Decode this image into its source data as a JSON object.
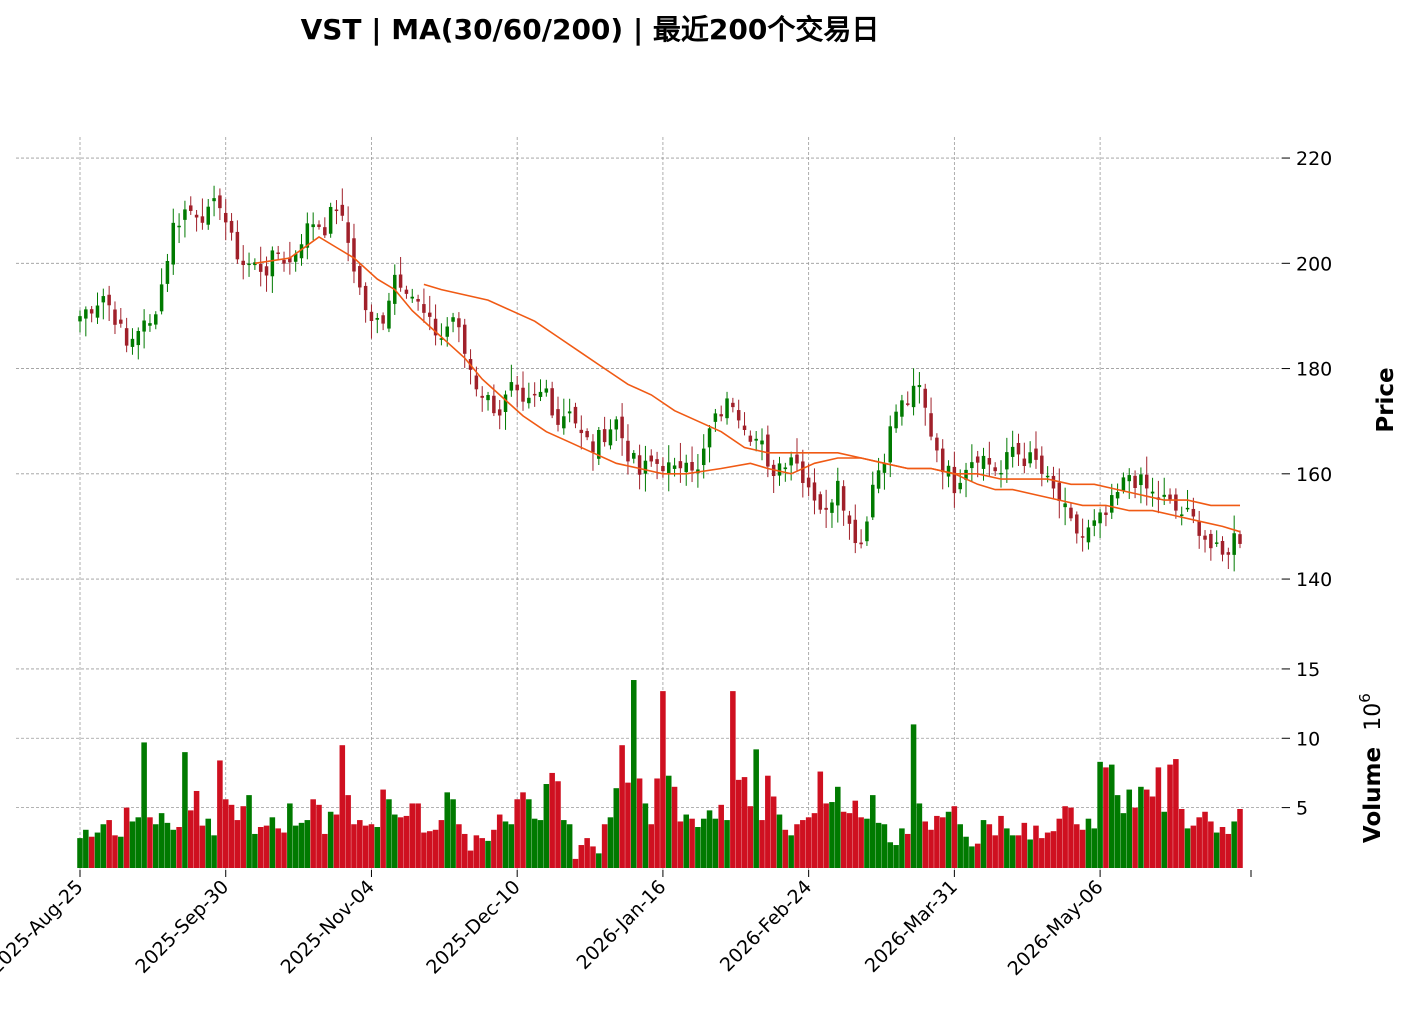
{
  "title": "VST  |  MA(30/60/200)  |  最近200个交易日",
  "chart_data": [
    {
      "type": "candlestick",
      "ylabel": "Price",
      "ylim": [
        125,
        224
      ],
      "yticks": [
        140,
        160,
        180,
        200,
        220
      ],
      "xticks": [
        "2025-Aug-25",
        "2025-Sep-30",
        "2025-Nov-04",
        "2025-Dec-10",
        "2026-Jan-16",
        "2026-Feb-24",
        "2026-Mar-31",
        "2026-May-06"
      ],
      "xtick_index": [
        0,
        25,
        50,
        75,
        100,
        125,
        150,
        175
      ],
      "n_bars": 200,
      "grid": true,
      "colors": {
        "up": "#007a00",
        "down": "#a0202a",
        "ma": "#f05a14"
      },
      "anchors": [
        [
          0,
          190
        ],
        [
          4,
          194
        ],
        [
          6,
          190
        ],
        [
          8,
          184
        ],
        [
          10,
          188
        ],
        [
          12,
          188
        ],
        [
          14,
          196
        ],
        [
          16,
          207
        ],
        [
          18,
          210
        ],
        [
          20,
          210
        ],
        [
          22,
          209
        ],
        [
          24,
          212
        ],
        [
          26,
          204
        ],
        [
          28,
          200
        ],
        [
          32,
          199
        ],
        [
          34,
          202
        ],
        [
          36,
          200
        ],
        [
          38,
          205
        ],
        [
          40,
          208
        ],
        [
          42,
          207
        ],
        [
          44,
          211
        ],
        [
          46,
          204
        ],
        [
          48,
          195
        ],
        [
          50,
          188
        ],
        [
          52,
          190
        ],
        [
          54,
          198
        ],
        [
          56,
          196
        ],
        [
          58,
          192
        ],
        [
          60,
          188
        ],
        [
          62,
          186
        ],
        [
          64,
          190
        ],
        [
          66,
          183
        ],
        [
          68,
          177
        ],
        [
          70,
          174
        ],
        [
          72,
          172
        ],
        [
          74,
          176
        ],
        [
          76,
          172
        ],
        [
          78,
          174
        ],
        [
          80,
          176
        ],
        [
          82,
          170
        ],
        [
          84,
          173
        ],
        [
          86,
          167
        ],
        [
          88,
          165
        ],
        [
          90,
          168
        ],
        [
          92,
          170
        ],
        [
          94,
          164
        ],
        [
          96,
          160
        ],
        [
          98,
          162
        ],
        [
          100,
          162
        ],
        [
          102,
          160
        ],
        [
          104,
          164
        ],
        [
          106,
          160
        ],
        [
          108,
          168
        ],
        [
          110,
          172
        ],
        [
          112,
          174
        ],
        [
          114,
          170
        ],
        [
          115,
          168
        ],
        [
          117,
          165
        ],
        [
          118,
          160
        ],
        [
          120,
          162
        ],
        [
          122,
          164
        ],
        [
          124,
          160
        ],
        [
          126,
          156
        ],
        [
          128,
          152
        ],
        [
          130,
          160
        ],
        [
          132,
          150
        ],
        [
          134,
          147
        ],
        [
          136,
          158
        ],
        [
          138,
          164
        ],
        [
          140,
          172
        ],
        [
          142,
          174
        ],
        [
          144,
          176
        ],
        [
          146,
          168
        ],
        [
          148,
          162
        ],
        [
          150,
          158
        ],
        [
          152,
          162
        ],
        [
          154,
          164
        ],
        [
          156,
          162
        ],
        [
          158,
          160
        ],
        [
          160,
          165
        ],
        [
          162,
          163
        ],
        [
          164,
          162
        ],
        [
          166,
          158
        ],
        [
          168,
          155
        ],
        [
          170,
          150
        ],
        [
          172,
          148
        ],
        [
          174,
          150
        ],
        [
          176,
          152
        ],
        [
          178,
          156
        ],
        [
          180,
          160
        ],
        [
          182,
          158
        ],
        [
          184,
          156
        ],
        [
          186,
          155
        ],
        [
          188,
          153
        ],
        [
          190,
          152
        ],
        [
          192,
          150
        ],
        [
          194,
          146
        ],
        [
          196,
          144
        ],
        [
          198,
          148
        ],
        [
          199,
          148
        ]
      ],
      "ma_series": [
        {
          "name": "MA30",
          "values": [
            [
              30,
              200
            ],
            [
              36,
              201
            ],
            [
              41,
              205
            ],
            [
              44,
              203
            ],
            [
              47,
              201
            ],
            [
              51,
              197
            ],
            [
              54,
              195
            ],
            [
              57,
              191
            ],
            [
              60,
              188
            ],
            [
              63,
              185
            ],
            [
              66,
              182
            ],
            [
              69,
              178
            ],
            [
              72,
              175
            ],
            [
              76,
              171
            ],
            [
              80,
              168
            ],
            [
              84,
              166
            ],
            [
              88,
              164
            ],
            [
              92,
              162
            ],
            [
              96,
              161
            ],
            [
              100,
              160
            ],
            [
              104,
              160
            ],
            [
              110,
              161
            ],
            [
              115,
              162
            ],
            [
              118,
              161
            ],
            [
              122,
              160
            ],
            [
              126,
              162
            ],
            [
              130,
              163
            ],
            [
              134,
              163
            ],
            [
              138,
              162
            ],
            [
              142,
              161
            ],
            [
              146,
              161
            ],
            [
              150,
              160
            ],
            [
              154,
              158
            ],
            [
              157,
              157
            ],
            [
              160,
              157
            ],
            [
              164,
              156
            ],
            [
              168,
              155
            ],
            [
              172,
              154
            ],
            [
              176,
              154
            ],
            [
              180,
              153
            ],
            [
              184,
              153
            ],
            [
              188,
              152
            ],
            [
              192,
              151
            ],
            [
              196,
              150
            ],
            [
              199,
              149
            ]
          ]
        },
        {
          "name": "MA60",
          "values": [
            [
              59,
              196
            ],
            [
              62,
              195
            ],
            [
              66,
              194
            ],
            [
              70,
              193
            ],
            [
              74,
              191
            ],
            [
              78,
              189
            ],
            [
              82,
              186
            ],
            [
              86,
              183
            ],
            [
              90,
              180
            ],
            [
              94,
              177
            ],
            [
              98,
              175
            ],
            [
              102,
              172
            ],
            [
              106,
              170
            ],
            [
              110,
              168
            ],
            [
              114,
              165
            ],
            [
              118,
              164
            ],
            [
              122,
              164
            ],
            [
              126,
              164
            ],
            [
              130,
              164
            ],
            [
              134,
              163
            ],
            [
              138,
              162
            ],
            [
              142,
              161
            ],
            [
              146,
              161
            ],
            [
              150,
              160
            ],
            [
              154,
              160
            ],
            [
              158,
              159
            ],
            [
              162,
              159
            ],
            [
              166,
              159
            ],
            [
              170,
              158
            ],
            [
              174,
              158
            ],
            [
              178,
              157
            ],
            [
              182,
              156
            ],
            [
              186,
              155
            ],
            [
              190,
              155
            ],
            [
              194,
              154
            ],
            [
              199,
              154
            ]
          ]
        }
      ]
    },
    {
      "type": "bar",
      "ylabel": "Volume",
      "yscale_label": "10",
      "yscale_exp": "6",
      "ylim": [
        0.5,
        15.5
      ],
      "yticks": [
        5,
        10,
        15
      ],
      "colors": {
        "up": "#007a00",
        "down": "#cf1020"
      },
      "values": [
        2.8,
        3.4,
        2.9,
        3.2,
        3.8,
        4.1,
        3.0,
        2.9,
        5.0,
        4.0,
        4.3,
        9.7,
        4.3,
        3.8,
        4.6,
        3.9,
        3.4,
        3.6,
        9.0,
        4.8,
        6.2,
        3.7,
        4.2,
        3.0,
        8.4,
        5.6,
        5.2,
        4.1,
        5.1,
        5.9,
        3.1,
        3.6,
        3.7,
        4.3,
        3.5,
        3.2,
        5.3,
        3.7,
        3.9,
        4.1,
        5.6,
        5.2,
        3.1,
        4.7,
        4.5,
        9.5,
        5.9,
        3.8,
        4.1,
        3.7,
        3.8,
        3.6,
        6.3,
        5.6,
        4.5,
        4.3,
        4.4,
        5.3,
        5.3,
        3.2,
        3.3,
        3.4,
        4.1,
        6.1,
        5.6,
        3.8,
        3.1,
        1.9,
        3.0,
        2.8,
        2.6,
        3.4,
        4.5,
        4.0,
        3.8,
        5.6,
        6.1,
        5.6,
        4.2,
        4.1,
        6.7,
        7.5,
        6.9,
        4.1,
        3.8,
        1.3,
        2.3,
        2.8,
        2.2,
        1.7,
        3.8,
        4.3,
        6.4,
        9.5,
        6.8,
        14.2,
        7.1,
        5.3,
        3.8,
        7.1,
        13.4,
        7.3,
        6.5,
        4.0,
        4.5,
        4.2,
        3.6,
        4.2,
        4.8,
        4.2,
        5.2,
        4.1,
        13.4,
        7.0,
        7.2,
        5.1,
        9.2,
        4.1,
        7.3,
        5.8,
        4.5,
        3.4,
        3.0,
        3.8,
        4.1,
        4.3,
        4.6,
        7.6,
        5.3,
        5.4,
        6.5,
        4.7,
        4.6,
        5.5,
        4.3,
        4.2,
        5.9,
        3.9,
        3.8,
        2.5,
        2.3,
        3.5,
        3.1,
        11.0,
        5.3,
        4.0,
        3.4,
        4.4,
        4.3,
        4.7,
        5.1,
        3.8,
        2.9,
        2.2,
        2.4,
        4.1,
        3.8,
        3.0,
        4.4,
        3.5,
        3.0,
        3.0,
        3.9,
        2.7,
        3.7,
        2.8,
        3.2,
        3.3,
        4.2,
        5.1,
        5.0,
        3.8,
        3.4,
        4.2,
        3.5,
        8.3,
        7.9,
        8.1,
        5.9,
        4.6,
        6.3,
        5.0,
        6.5,
        6.3,
        5.8,
        7.9,
        4.7,
        8.1,
        8.5,
        4.9,
        3.5,
        3.7,
        4.3,
        4.7,
        4.0,
        3.2,
        3.6,
        3.1,
        4.0,
        4.9
      ]
    }
  ]
}
